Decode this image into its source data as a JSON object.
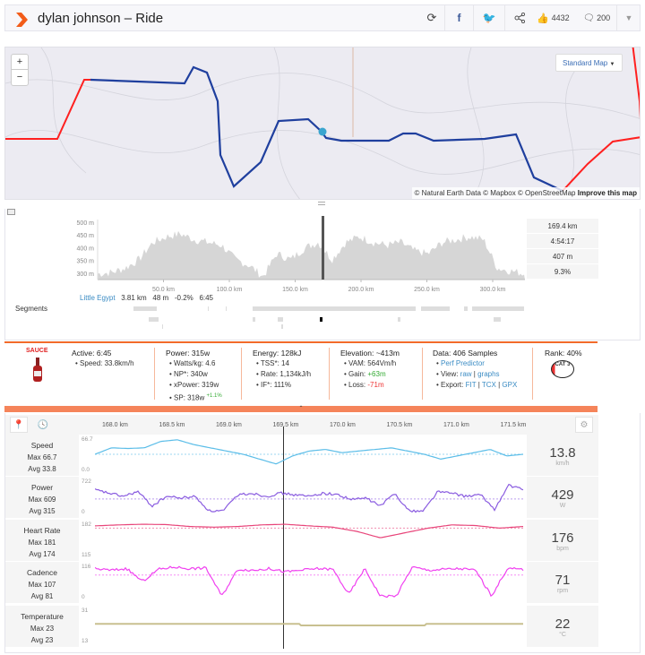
{
  "header": {
    "title": "dylan johnson – Ride",
    "kudos": "4432",
    "comments": "200",
    "icons": [
      "strava-logo",
      "refresh-icon",
      "facebook-icon",
      "twitter-icon",
      "share-icon",
      "thumbs-up-icon",
      "comment-icon",
      "caret-down-icon"
    ]
  },
  "map": {
    "zoom_in": "+",
    "zoom_out": "−",
    "style_select": "Standard Map",
    "attribution": "© Natural Earth Data © Mapbox © OpenStreetMap",
    "improve": "Improve this map",
    "route_colors": {
      "ride": "#ff2020",
      "segment": "#1f3f9e",
      "marker": "#3aa5cf"
    }
  },
  "elevation": {
    "y_ticks": [
      "500 m",
      "450 m",
      "400 m",
      "350 m",
      "300 m"
    ],
    "x_ticks": [
      "50.0 km",
      "100.0 km",
      "150.0 km",
      "200.0 km",
      "250.0 km",
      "300.0 km"
    ],
    "stats": [
      "169.4 km",
      "4:54:17",
      "407 m",
      "9.3%"
    ],
    "segment": {
      "name": "Little Egypt",
      "distance": "3.81 km",
      "elev": "48 m",
      "grade": "-0.2%",
      "time": "6:45"
    },
    "segments_label": "Segments"
  },
  "info": {
    "sauce": "SAUCE",
    "active": {
      "title": "Active: 6:45",
      "items": [
        "Speed: 33.8km/h"
      ]
    },
    "power": {
      "title": "Power: 315w",
      "items": [
        "Watts/kg: 4.6",
        "NP*: 340w",
        "xPower: 319w",
        "SP: 318w"
      ],
      "sp_delta": "+1.1%"
    },
    "energy": {
      "title": "Energy: 128kJ",
      "items": [
        "TSS*: 14",
        "Rate: 1,134kJ/h",
        "IF*: 111%"
      ]
    },
    "elevation": {
      "title": "Elevation: ~413m",
      "items": [
        "VAM: 564Vm/h"
      ],
      "gain": "+63m",
      "loss": "-71m",
      "gain_label": "Gain: ",
      "loss_label": "Loss: "
    },
    "data": {
      "title": "Data: 406 Samples",
      "perf": "Perf Predictor",
      "view_label": "View: ",
      "raw": "raw",
      "graphs": "graphs",
      "export_label": "Export: ",
      "fit": "FIT",
      "tcx": "TCX",
      "gpx": "GPX"
    },
    "rank": {
      "title": "Rank: 40%",
      "badge": "CAT 3"
    }
  },
  "detail": {
    "x_ticks": [
      "168.0 km",
      "168.5 km",
      "169.0 km",
      "169.5 km",
      "170.0 km",
      "170.5 km",
      "171.0 km",
      "171.5 km"
    ],
    "rows": [
      {
        "name": "Speed",
        "max": "Max 66.7",
        "avg": "Avg 33.8",
        "top": "66.7",
        "bottom": "0.0",
        "value": "13.8",
        "unit": "km/h",
        "color": "#5bbde8"
      },
      {
        "name": "Power",
        "max": "Max 609",
        "avg": "Avg 315",
        "top": "722",
        "bottom": "0",
        "value": "429",
        "unit": "W",
        "color": "#8a5ce0"
      },
      {
        "name": "Heart Rate",
        "max": "Max 181",
        "avg": "Avg 174",
        "top": "182",
        "bottom": "115",
        "value": "176",
        "unit": "bpm",
        "color": "#e8457a"
      },
      {
        "name": "Cadence",
        "max": "Max 107",
        "avg": "Avg 81",
        "top": "116",
        "bottom": "0",
        "value": "71",
        "unit": "rpm",
        "color": "#f040f0"
      },
      {
        "name": "Temperature",
        "max": "Max 23",
        "avg": "Avg 23",
        "top": "31",
        "bottom": "13",
        "value": "22",
        "unit": "°C",
        "color": "#c8c090"
      }
    ]
  }
}
